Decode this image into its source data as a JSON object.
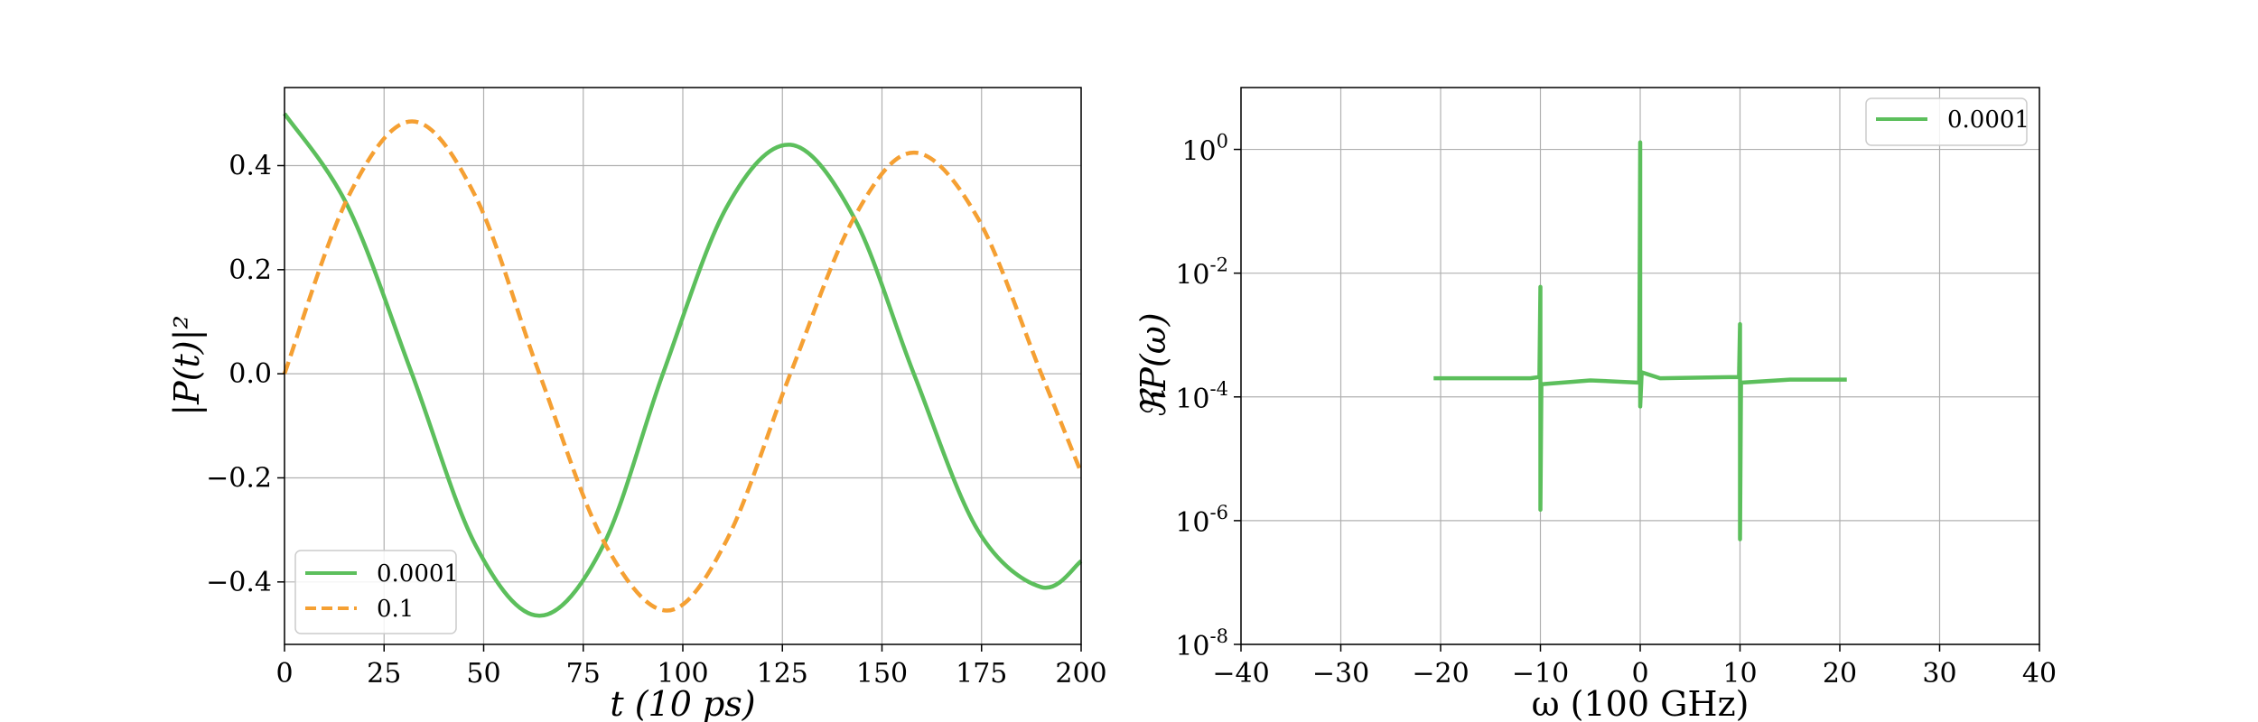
{
  "chart_data": [
    {
      "type": "line",
      "xlabel": "t (10 ps)",
      "ylabel": "|P(t)|²",
      "xlim": [
        0,
        200
      ],
      "ylim": [
        -0.52,
        0.55
      ],
      "xticks": [
        0,
        25,
        50,
        75,
        100,
        125,
        150,
        175,
        200
      ],
      "xtick_labels": [
        "0",
        "25",
        "50",
        "75",
        "100",
        "125",
        "150",
        "175",
        "200"
      ],
      "yticks": [
        -0.4,
        -0.2,
        0.0,
        0.2,
        0.4
      ],
      "ytick_labels": [
        "−0.4",
        "−0.2",
        "0.0",
        "0.2",
        "0.4"
      ],
      "grid": true,
      "legend": "lower-left",
      "series": [
        {
          "name": "0.0001",
          "color": "#5cbf5c",
          "style": "solid",
          "points": [
            [
              0,
              0.5
            ],
            [
              16,
              0.32
            ],
            [
              32,
              0.0
            ],
            [
              48,
              -0.33
            ],
            [
              64,
              -0.465
            ],
            [
              80,
              -0.33
            ],
            [
              95,
              0.0
            ],
            [
              111,
              0.32
            ],
            [
              127,
              0.44
            ],
            [
              143,
              0.3
            ],
            [
              158,
              0.0
            ],
            [
              174,
              -0.3
            ],
            [
              190,
              -0.41
            ],
            [
              200,
              -0.36
            ]
          ]
        },
        {
          "name": "0.1",
          "color": "#f5a033",
          "style": "dashed",
          "points": [
            [
              0,
              0.0
            ],
            [
              16,
              0.34
            ],
            [
              32,
              0.485
            ],
            [
              48,
              0.34
            ],
            [
              64,
              0.0
            ],
            [
              80,
              -0.32
            ],
            [
              96,
              -0.455
            ],
            [
              111,
              -0.32
            ],
            [
              127,
              0.0
            ],
            [
              143,
              0.3
            ],
            [
              158,
              0.425
            ],
            [
              174,
              0.3
            ],
            [
              190,
              0.0
            ],
            [
              200,
              -0.19
            ]
          ]
        }
      ]
    },
    {
      "type": "line",
      "xlabel": "ω (100 GHz)",
      "ylabel": "ℜP(ω)",
      "xlim": [
        -40,
        40
      ],
      "ylim_log10": [
        -8,
        1
      ],
      "yscale": "log",
      "xticks": [
        -40,
        -30,
        -20,
        -10,
        0,
        10,
        20,
        30,
        40
      ],
      "xtick_labels": [
        "−40",
        "−30",
        "−20",
        "−10",
        "0",
        "10",
        "20",
        "30",
        "40"
      ],
      "ytick_exponents": [
        -8,
        -6,
        -4,
        -2,
        0
      ],
      "ytick_labels": [
        "10-8",
        "10-6",
        "10-4",
        "10-2",
        "100"
      ],
      "grid": true,
      "legend": "upper-right",
      "series": [
        {
          "name": "0.0001",
          "color": "#5cbf5c",
          "style": "solid",
          "points": [
            [
              -20.7,
              0.0002
            ],
            [
              -11,
              0.0002
            ],
            [
              -10.1,
              0.00021
            ],
            [
              -10,
              0.006
            ],
            [
              -10,
              1.5e-06
            ],
            [
              -9.9,
              0.00016
            ],
            [
              -5,
              0.000185
            ],
            [
              -0.1,
              0.00017
            ],
            [
              0,
              1.3
            ],
            [
              0,
              7e-05
            ],
            [
              0.15,
              0.00025
            ],
            [
              2,
              0.0002
            ],
            [
              9.9,
              0.00021
            ],
            [
              10,
              0.0015
            ],
            [
              10,
              5e-07
            ],
            [
              10.1,
              0.00017
            ],
            [
              15,
              0.00019
            ],
            [
              20.7,
              0.00019
            ]
          ]
        }
      ]
    }
  ]
}
